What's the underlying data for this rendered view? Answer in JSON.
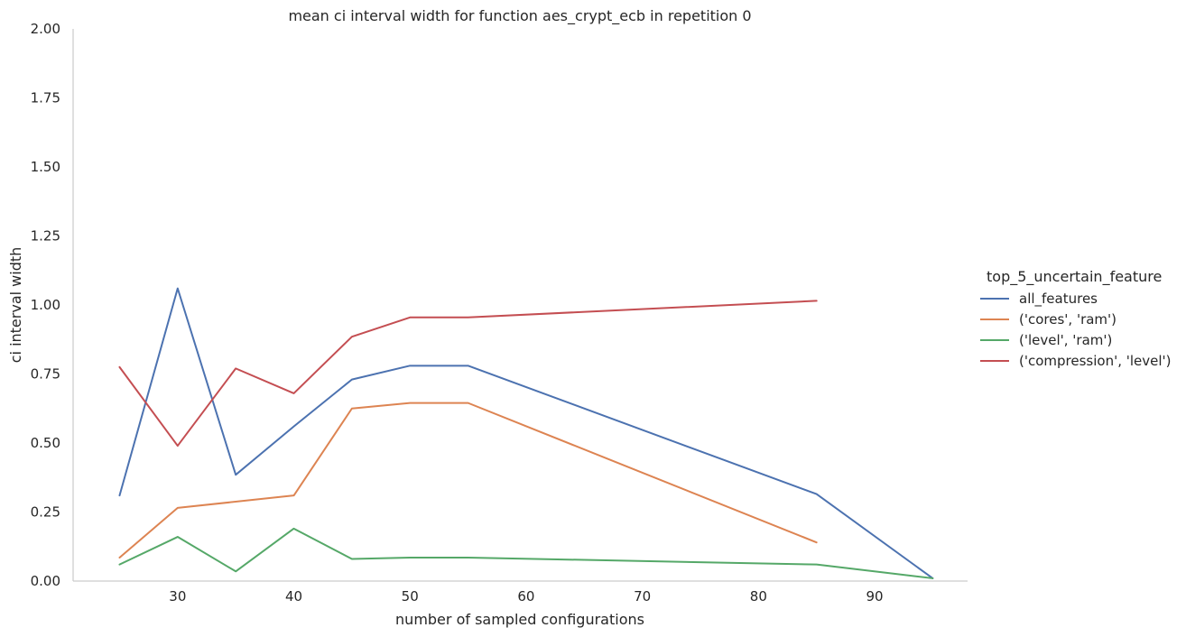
{
  "chart_data": {
    "type": "line",
    "title": "mean ci interval width for function aes_crypt_ecb in repetition 0",
    "xlabel": "number of sampled configurations",
    "ylabel": "ci interval width",
    "xlim": [
      21,
      98
    ],
    "ylim": [
      0,
      2
    ],
    "xticks": [
      30,
      40,
      50,
      60,
      70,
      80,
      90
    ],
    "yticks": [
      "0.00",
      "0.25",
      "0.50",
      "0.75",
      "1.00",
      "1.25",
      "1.50",
      "1.75",
      "2.00"
    ],
    "grid": false,
    "legend_title": "top_5_uncertain_feature",
    "legend_position": "right",
    "series": [
      {
        "name": "all_features",
        "color": "#4c72b0",
        "x": [
          25,
          30,
          35,
          40,
          45,
          50,
          55,
          85,
          95
        ],
        "y": [
          0.31,
          1.06,
          0.385,
          0.56,
          0.73,
          0.78,
          0.78,
          0.315,
          0.01
        ]
      },
      {
        "name": "('cores', 'ram')",
        "color": "#dd8452",
        "x": [
          25,
          30,
          40,
          45,
          50,
          55,
          85
        ],
        "y": [
          0.085,
          0.265,
          0.31,
          0.625,
          0.645,
          0.645,
          0.14
        ]
      },
      {
        "name": "('level', 'ram')",
        "color": "#55a868",
        "x": [
          25,
          30,
          35,
          40,
          45,
          50,
          55,
          85,
          95
        ],
        "y": [
          0.06,
          0.16,
          0.035,
          0.19,
          0.08,
          0.085,
          0.085,
          0.06,
          0.01
        ]
      },
      {
        "name": "('compression', 'level')",
        "color": "#c44e52",
        "x": [
          25,
          30,
          35,
          40,
          45,
          50,
          55,
          85
        ],
        "y": [
          0.775,
          0.49,
          0.77,
          0.68,
          0.885,
          0.955,
          0.955,
          1.015
        ]
      }
    ]
  }
}
